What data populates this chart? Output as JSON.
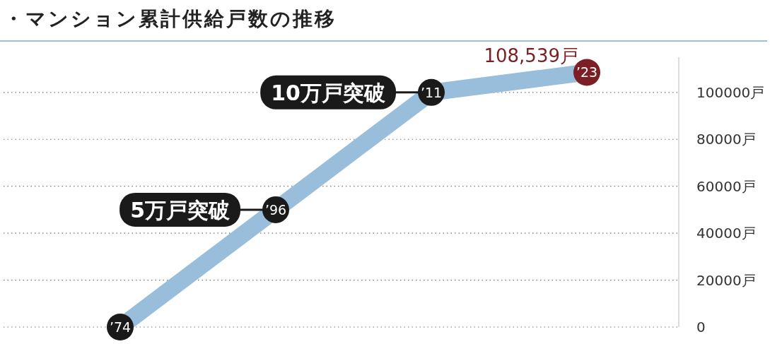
{
  "chart_data": {
    "type": "line",
    "title": "・マンション累計供給戸数の推移",
    "categories": [
      "’74",
      "’96",
      "’11",
      "’23"
    ],
    "series": [
      {
        "type": "line",
        "color": "#98bedc",
        "colors": [
          "#1a1a1a",
          "#1a1a1a",
          "#1a1a1a",
          "#7b1f24"
        ],
        "marker": "circle",
        "line_style": "solid",
        "values": [
          0,
          50000,
          100000,
          108539
        ],
        "value_labels": [
          null,
          null,
          null,
          "108,539戸"
        ]
      }
    ],
    "ylim": [
      0,
      115000
    ],
    "yticks": [
      0,
      {
        "value": 20000,
        "label": "20000戸"
      },
      {
        "value": 40000,
        "label": "40000戸"
      },
      {
        "value": 60000,
        "label": "60000戸"
      },
      {
        "value": 80000,
        "label": "80000戸"
      },
      {
        "value": 100000,
        "label": "100000戸"
      }
    ],
    "grid": "y",
    "annotations": [
      {
        "text": "5万戸突破",
        "x": "’96",
        "y": 50000
      },
      {
        "text": "10万戸突破",
        "x": "’11",
        "y": 100000
      }
    ]
  }
}
